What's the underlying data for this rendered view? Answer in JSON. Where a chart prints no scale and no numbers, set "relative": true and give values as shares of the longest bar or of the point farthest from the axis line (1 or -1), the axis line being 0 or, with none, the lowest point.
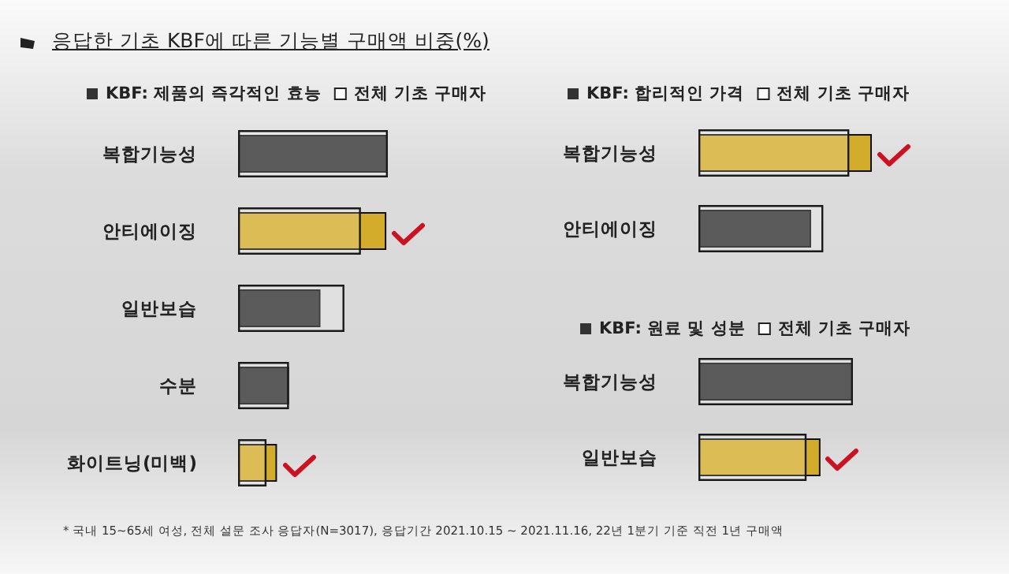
{
  "chart_data": [
    {
      "type": "bar",
      "orientation": "horizontal",
      "relative": true,
      "title": "응답한 기초 KBF에 따른 기능별 구매액 비중(%)",
      "annotations": [
        "* 국내 15~65세 여성, 전체 설문 조사 응답자(N=3017), 응답기간 2021.10.15 ~ 2021.11.16, 22년 1분기 기준 직전 1년 구매액"
      ],
      "legend": "top",
      "categories": [
        "복합기능성",
        "안티에이징",
        "일반보습",
        "수분",
        "화이트닝(미백)"
      ],
      "series": [
        {
          "name": "KBF: 제품의 즉각적인 효능",
          "color": "#333333",
          "colors": [
            "#333333",
            "#d4ac2b",
            "#333333",
            "#333333",
            "#d4ac2b"
          ],
          "values": [
            1,
            0.99,
            0.55,
            0.34,
            0.26
          ]
        },
        {
          "name": "전체 기초 구매자",
          "color": "#ffffff",
          "values": [
            1,
            0.82,
            0.71,
            0.34,
            0.19
          ]
        }
      ]
    },
    {
      "type": "bar",
      "orientation": "horizontal",
      "relative": true,
      "legend": "top",
      "categories": [
        "복합기능성",
        "안티에이징"
      ],
      "series": [
        {
          "name": "KBF: 합리적인 가격",
          "color": "#333333",
          "colors": [
            "#d4ac2b",
            "#333333"
          ],
          "values": [
            1,
            0.65
          ]
        },
        {
          "name": "전체 기초 구매자",
          "color": "#ffffff",
          "values": [
            0.87,
            0.72
          ]
        }
      ]
    },
    {
      "type": "bar",
      "orientation": "horizontal",
      "relative": true,
      "legend": "top",
      "categories": [
        "복합기능성",
        "일반보습"
      ],
      "series": [
        {
          "name": "KBF: 원료 및 성분",
          "color": "#333333",
          "colors": [
            "#333333",
            "#d4ac2b"
          ],
          "values": [
            1,
            0.79
          ]
        },
        {
          "name": "전체 기초 구매자",
          "color": "#ffffff",
          "values": [
            1,
            0.7
          ]
        }
      ]
    }
  ]
}
